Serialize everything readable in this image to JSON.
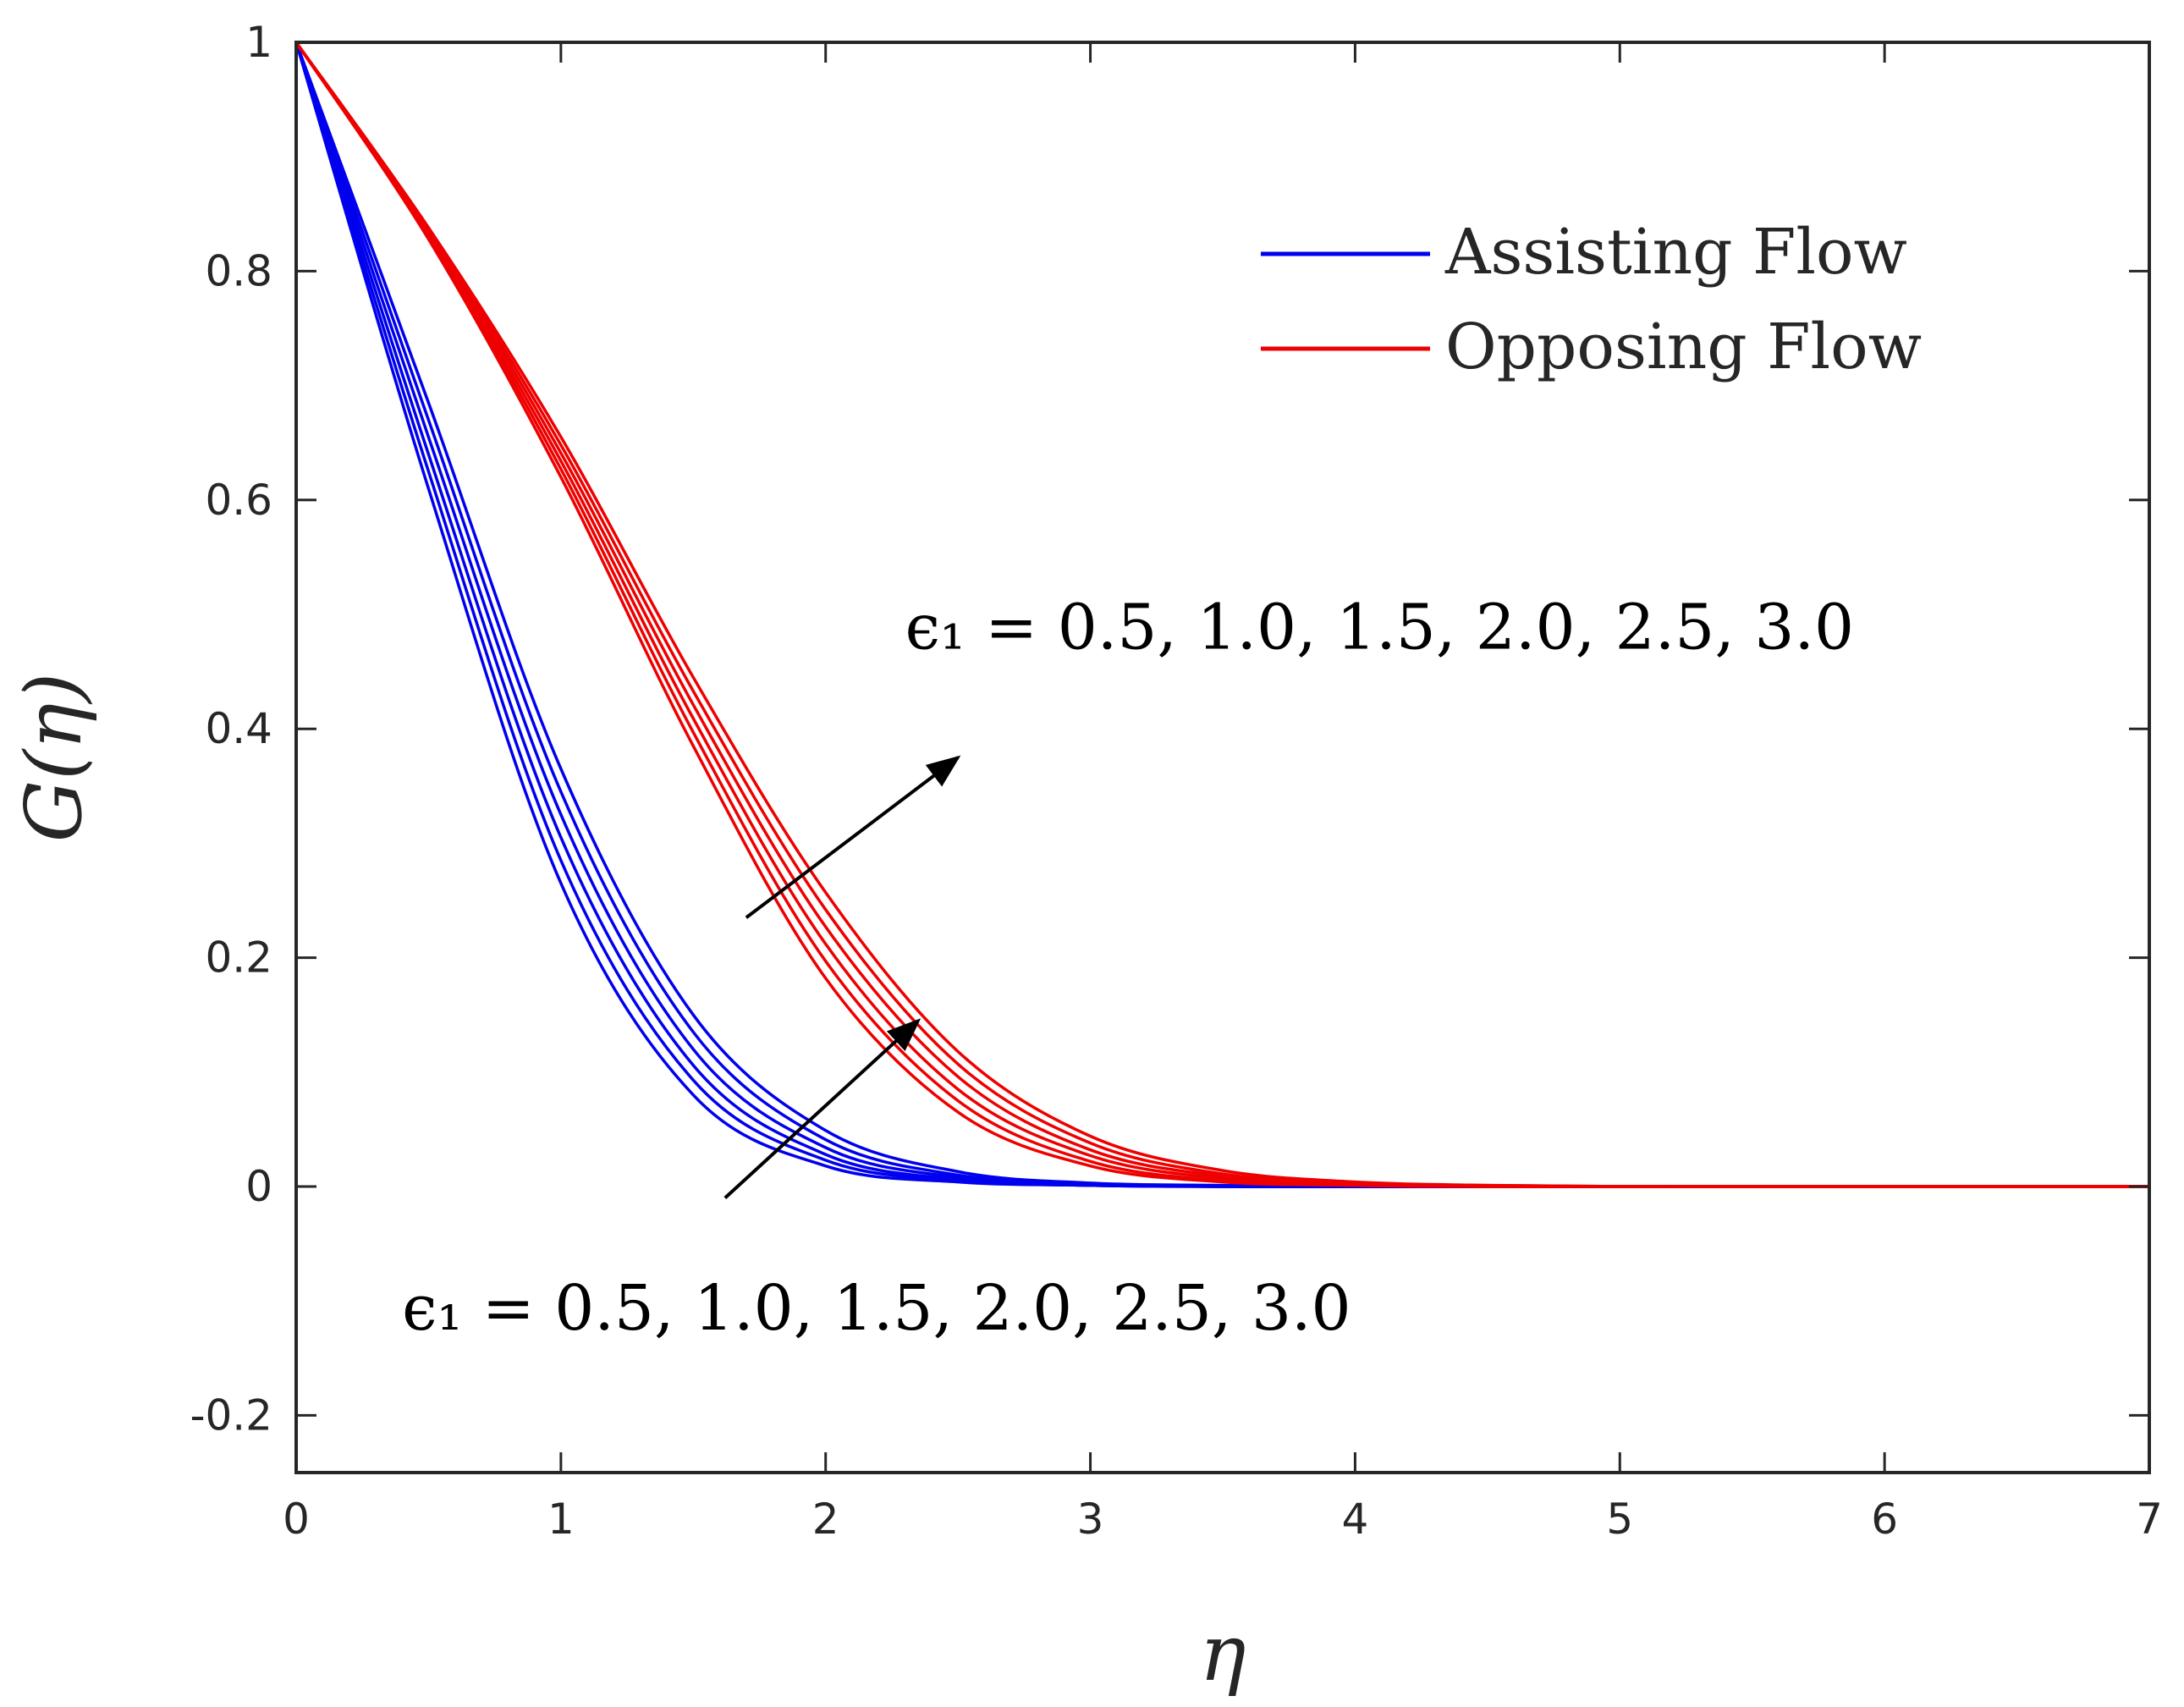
{
  "chart_data": {
    "type": "line",
    "title": "",
    "xlabel": "η",
    "ylabel": "G(η)",
    "xlim": [
      0,
      7
    ],
    "ylim": [
      -0.25,
      1
    ],
    "xticks": [
      0,
      1,
      2,
      3,
      4,
      5,
      6,
      7
    ],
    "yticks": [
      1,
      0.8,
      0.6,
      0.4,
      0.2,
      0,
      -0.2
    ],
    "xtick_labels": [
      "0",
      "1",
      "2",
      "3",
      "4",
      "5",
      "6",
      "7"
    ],
    "ytick_labels": [
      "1",
      "0.8",
      "0.6",
      "0.4",
      "0.2",
      "0",
      "-0.2"
    ],
    "grid": false,
    "legend_position": "top-right",
    "legend": [
      {
        "label": "Assisting Flow",
        "color": "#0000ee"
      },
      {
        "label": "Opposing Flow",
        "color": "#ee0000"
      }
    ],
    "x": [
      0,
      0.5,
      1.0,
      1.5,
      2.0,
      2.5,
      3.0,
      3.5,
      4.0,
      4.5,
      5.0,
      5.5,
      6.0,
      6.5,
      7.0
    ],
    "series": [
      {
        "group": "assisting",
        "color": "#0000ee",
        "values": [
          1,
          0.61,
          0.265,
          0.08,
          0.018,
          0.004,
          0.001,
          0,
          0,
          0,
          0,
          0,
          0,
          0,
          0
        ]
      },
      {
        "group": "assisting",
        "color": "#0000ee",
        "values": [
          1,
          0.625,
          0.285,
          0.093,
          0.023,
          0.005,
          0.001,
          0,
          0,
          0,
          0,
          0,
          0,
          0,
          0
        ]
      },
      {
        "group": "assisting",
        "color": "#0000ee",
        "values": [
          1,
          0.64,
          0.305,
          0.106,
          0.028,
          0.006,
          0.001,
          0,
          0,
          0,
          0,
          0,
          0,
          0,
          0
        ]
      },
      {
        "group": "assisting",
        "color": "#0000ee",
        "values": [
          1,
          0.655,
          0.325,
          0.12,
          0.034,
          0.008,
          0.002,
          0,
          0,
          0,
          0,
          0,
          0,
          0,
          0
        ]
      },
      {
        "group": "assisting",
        "color": "#0000ee",
        "values": [
          1,
          0.67,
          0.345,
          0.135,
          0.041,
          0.01,
          0.002,
          0,
          0,
          0,
          0,
          0,
          0,
          0,
          0
        ]
      },
      {
        "group": "assisting",
        "color": "#0000ee",
        "values": [
          1,
          0.685,
          0.365,
          0.15,
          0.049,
          0.013,
          0.003,
          0.001,
          0,
          0,
          0,
          0,
          0,
          0,
          0
        ]
      },
      {
        "group": "opposing",
        "color": "#ee0000",
        "values": [
          1,
          0.828,
          0.62,
          0.385,
          0.182,
          0.065,
          0.018,
          0.004,
          0.001,
          0,
          0,
          0,
          0,
          0,
          0
        ]
      },
      {
        "group": "opposing",
        "color": "#ee0000",
        "values": [
          1,
          0.83,
          0.627,
          0.397,
          0.197,
          0.075,
          0.022,
          0.005,
          0.001,
          0,
          0,
          0,
          0,
          0,
          0
        ]
      },
      {
        "group": "opposing",
        "color": "#ee0000",
        "values": [
          1,
          0.832,
          0.634,
          0.409,
          0.212,
          0.085,
          0.027,
          0.007,
          0.002,
          0,
          0,
          0,
          0,
          0,
          0
        ]
      },
      {
        "group": "opposing",
        "color": "#ee0000",
        "values": [
          1,
          0.834,
          0.641,
          0.421,
          0.227,
          0.096,
          0.032,
          0.009,
          0.002,
          0,
          0,
          0,
          0,
          0,
          0
        ]
      },
      {
        "group": "opposing",
        "color": "#ee0000",
        "values": [
          1,
          0.836,
          0.648,
          0.433,
          0.242,
          0.107,
          0.038,
          0.011,
          0.003,
          0.001,
          0,
          0,
          0,
          0,
          0
        ]
      },
      {
        "group": "opposing",
        "color": "#ee0000",
        "values": [
          1,
          0.838,
          0.655,
          0.445,
          0.257,
          0.118,
          0.044,
          0.014,
          0.004,
          0.001,
          0,
          0,
          0,
          0,
          0
        ]
      }
    ],
    "annotations": [
      {
        "text": "ϵ₁ = 0.5, 1.0, 1.5, 2.0, 2.5, 3.0",
        "x": 2.3,
        "y": 0.47,
        "arrow_from": [
          1.7,
          0.235
        ],
        "arrow_to": [
          2.5,
          0.375
        ]
      },
      {
        "text": "ϵ₁ = 0.5, 1.0, 1.5, 2.0, 2.5, 3.0",
        "x": 0.4,
        "y": -0.125,
        "arrow_from": [
          1.62,
          -0.01
        ],
        "arrow_to": [
          2.35,
          0.145
        ]
      }
    ]
  }
}
